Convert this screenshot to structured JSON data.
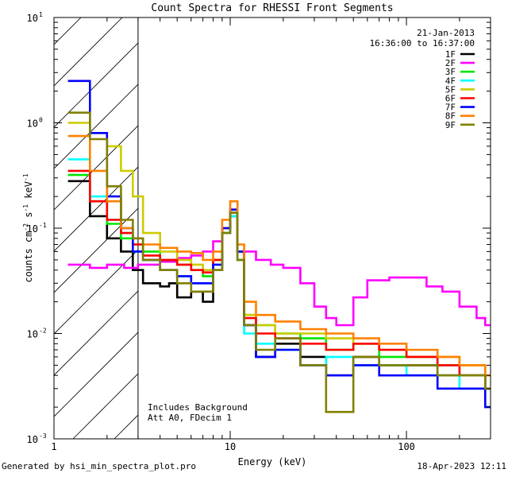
{
  "chart_data": {
    "type": "line",
    "title": "Count Spectra for RHESSI Front Segments",
    "xlabel": "Energy (keV)",
    "ylabel_parts": [
      "counts cm",
      "-2",
      " s",
      "-1",
      " keV",
      "-1"
    ],
    "xscale": "log",
    "yscale": "log",
    "xlim": [
      1,
      300
    ],
    "ylim": [
      0.001,
      10
    ],
    "x_ticks": [
      {
        "value": 1,
        "label": "1"
      },
      {
        "value": 10,
        "label": "10"
      },
      {
        "value": 100,
        "label": "100"
      }
    ],
    "y_ticks": [
      {
        "value": 0.001,
        "base": "10",
        "exp": "-3"
      },
      {
        "value": 0.01,
        "base": "10",
        "exp": "-2"
      },
      {
        "value": 0.1,
        "base": "10",
        "exp": "-1"
      },
      {
        "value": 1,
        "base": "10",
        "exp": "0"
      },
      {
        "value": 10,
        "base": "10",
        "exp": "1"
      }
    ],
    "date": "21-Jan-2013",
    "time_range": "16:36:00 to 16:37:00",
    "hatch_xlim": [
      1,
      3
    ],
    "annotations": [
      "Includes Background",
      "Att A0, FDecim 1"
    ],
    "series": [
      {
        "name": "1F",
        "color": "#000000",
        "values": [
          [
            1.2,
            0.28
          ],
          [
            1.6,
            0.13
          ],
          [
            2,
            0.08
          ],
          [
            2.4,
            0.06
          ],
          [
            2.8,
            0.04
          ],
          [
            3.2,
            0.03
          ],
          [
            4,
            0.028
          ],
          [
            4.5,
            0.03
          ],
          [
            5,
            0.022
          ],
          [
            6,
            0.025
          ],
          [
            7,
            0.02
          ],
          [
            8,
            0.04
          ],
          [
            9,
            0.09
          ],
          [
            10,
            0.13
          ],
          [
            11,
            0.05
          ],
          [
            12,
            0.012
          ],
          [
            14,
            0.006
          ],
          [
            18,
            0.008
          ],
          [
            25,
            0.006
          ],
          [
            35,
            0.004
          ],
          [
            50,
            0.006
          ],
          [
            70,
            0.005
          ],
          [
            100,
            0.005
          ],
          [
            150,
            0.004
          ],
          [
            200,
            0.004
          ],
          [
            280,
            0.003
          ]
        ]
      },
      {
        "name": "2F",
        "color": "#ff00ff",
        "values": [
          [
            1.2,
            0.045
          ],
          [
            1.6,
            0.042
          ],
          [
            2,
            0.045
          ],
          [
            2.5,
            0.042
          ],
          [
            3,
            0.045
          ],
          [
            4,
            0.048
          ],
          [
            5,
            0.052
          ],
          [
            6,
            0.055
          ],
          [
            7,
            0.06
          ],
          [
            8,
            0.075
          ],
          [
            9,
            0.1
          ],
          [
            10,
            0.15
          ],
          [
            11,
            0.06
          ],
          [
            14,
            0.05
          ],
          [
            17,
            0.045
          ],
          [
            20,
            0.042
          ],
          [
            25,
            0.03
          ],
          [
            30,
            0.018
          ],
          [
            35,
            0.014
          ],
          [
            40,
            0.012
          ],
          [
            50,
            0.022
          ],
          [
            60,
            0.032
          ],
          [
            80,
            0.034
          ],
          [
            100,
            0.034
          ],
          [
            130,
            0.028
          ],
          [
            160,
            0.025
          ],
          [
            200,
            0.018
          ],
          [
            250,
            0.014
          ],
          [
            280,
            0.012
          ]
        ]
      },
      {
        "name": "3F",
        "color": "#00e600",
        "values": [
          [
            1.2,
            0.32
          ],
          [
            1.6,
            0.18
          ],
          [
            2,
            0.11
          ],
          [
            2.4,
            0.08
          ],
          [
            2.8,
            0.07
          ],
          [
            3.2,
            0.06
          ],
          [
            4,
            0.05
          ],
          [
            5,
            0.045
          ],
          [
            6,
            0.04
          ],
          [
            7,
            0.035
          ],
          [
            8,
            0.05
          ],
          [
            9,
            0.1
          ],
          [
            10,
            0.14
          ],
          [
            11,
            0.06
          ],
          [
            12,
            0.015
          ],
          [
            14,
            0.012
          ],
          [
            18,
            0.01
          ],
          [
            25,
            0.009
          ],
          [
            35,
            0.007
          ],
          [
            50,
            0.008
          ],
          [
            70,
            0.006
          ],
          [
            100,
            0.006
          ],
          [
            150,
            0.005
          ],
          [
            200,
            0.004
          ],
          [
            280,
            0.003
          ]
        ]
      },
      {
        "name": "4F",
        "color": "#00ffff",
        "values": [
          [
            1.2,
            0.45
          ],
          [
            1.6,
            0.2
          ],
          [
            2,
            0.12
          ],
          [
            2.4,
            0.09
          ],
          [
            2.8,
            0.06
          ],
          [
            3.2,
            0.05
          ],
          [
            4,
            0.04
          ],
          [
            5,
            0.035
          ],
          [
            6,
            0.03
          ],
          [
            7,
            0.03
          ],
          [
            8,
            0.045
          ],
          [
            9,
            0.09
          ],
          [
            10,
            0.13
          ],
          [
            11,
            0.05
          ],
          [
            12,
            0.01
          ],
          [
            14,
            0.008
          ],
          [
            18,
            0.007
          ],
          [
            25,
            0.005
          ],
          [
            35,
            0.006
          ],
          [
            50,
            0.005
          ],
          [
            70,
            0.005
          ],
          [
            100,
            0.004
          ],
          [
            150,
            0.004
          ],
          [
            200,
            0.003
          ],
          [
            280,
            0.003
          ]
        ]
      },
      {
        "name": "5F",
        "color": "#cccc00",
        "values": [
          [
            1.2,
            1.0
          ],
          [
            1.6,
            0.8
          ],
          [
            2,
            0.6
          ],
          [
            2.4,
            0.35
          ],
          [
            2.8,
            0.2
          ],
          [
            3.2,
            0.09
          ],
          [
            4,
            0.06
          ],
          [
            5,
            0.05
          ],
          [
            6,
            0.045
          ],
          [
            7,
            0.04
          ],
          [
            8,
            0.05
          ],
          [
            9,
            0.1
          ],
          [
            10,
            0.15
          ],
          [
            11,
            0.06
          ],
          [
            12,
            0.015
          ],
          [
            14,
            0.012
          ],
          [
            18,
            0.01
          ],
          [
            25,
            0.01
          ],
          [
            35,
            0.009
          ],
          [
            50,
            0.008
          ],
          [
            70,
            0.007
          ],
          [
            100,
            0.006
          ],
          [
            150,
            0.006
          ],
          [
            200,
            0.005
          ],
          [
            280,
            0.004
          ]
        ]
      },
      {
        "name": "6F",
        "color": "#ff0000",
        "values": [
          [
            1.2,
            0.35
          ],
          [
            1.6,
            0.18
          ],
          [
            2,
            0.12
          ],
          [
            2.4,
            0.09
          ],
          [
            2.8,
            0.07
          ],
          [
            3.2,
            0.055
          ],
          [
            4,
            0.05
          ],
          [
            5,
            0.045
          ],
          [
            6,
            0.04
          ],
          [
            7,
            0.038
          ],
          [
            8,
            0.05
          ],
          [
            9,
            0.1
          ],
          [
            10,
            0.14
          ],
          [
            11,
            0.06
          ],
          [
            12,
            0.014
          ],
          [
            14,
            0.01
          ],
          [
            18,
            0.009
          ],
          [
            25,
            0.008
          ],
          [
            35,
            0.007
          ],
          [
            50,
            0.008
          ],
          [
            70,
            0.007
          ],
          [
            100,
            0.006
          ],
          [
            150,
            0.005
          ],
          [
            200,
            0.004
          ],
          [
            280,
            0.003
          ]
        ]
      },
      {
        "name": "7F",
        "color": "#0000ff",
        "values": [
          [
            1.2,
            2.5
          ],
          [
            1.6,
            0.8
          ],
          [
            2,
            0.2
          ],
          [
            2.4,
            0.1
          ],
          [
            2.8,
            0.06
          ],
          [
            3.2,
            0.05
          ],
          [
            4,
            0.04
          ],
          [
            5,
            0.035
          ],
          [
            6,
            0.03
          ],
          [
            7,
            0.03
          ],
          [
            8,
            0.045
          ],
          [
            9,
            0.1
          ],
          [
            10,
            0.15
          ],
          [
            11,
            0.06
          ],
          [
            12,
            0.012
          ],
          [
            14,
            0.006
          ],
          [
            18,
            0.007
          ],
          [
            25,
            0.005
          ],
          [
            35,
            0.004
          ],
          [
            50,
            0.005
          ],
          [
            70,
            0.004
          ],
          [
            100,
            0.004
          ],
          [
            150,
            0.003
          ],
          [
            200,
            0.003
          ],
          [
            280,
            0.002
          ]
        ]
      },
      {
        "name": "8F",
        "color": "#ff8000",
        "values": [
          [
            1.2,
            0.75
          ],
          [
            1.6,
            0.35
          ],
          [
            2,
            0.18
          ],
          [
            2.4,
            0.1
          ],
          [
            2.8,
            0.08
          ],
          [
            3.2,
            0.07
          ],
          [
            4,
            0.065
          ],
          [
            5,
            0.06
          ],
          [
            6,
            0.058
          ],
          [
            7,
            0.05
          ],
          [
            8,
            0.06
          ],
          [
            9,
            0.12
          ],
          [
            10,
            0.18
          ],
          [
            11,
            0.07
          ],
          [
            12,
            0.02
          ],
          [
            14,
            0.015
          ],
          [
            18,
            0.013
          ],
          [
            25,
            0.011
          ],
          [
            35,
            0.01
          ],
          [
            50,
            0.009
          ],
          [
            70,
            0.008
          ],
          [
            100,
            0.007
          ],
          [
            150,
            0.006
          ],
          [
            200,
            0.005
          ],
          [
            280,
            0.004
          ]
        ]
      },
      {
        "name": "9F",
        "color": "#808000",
        "values": [
          [
            1.2,
            1.25
          ],
          [
            1.6,
            0.7
          ],
          [
            2,
            0.25
          ],
          [
            2.4,
            0.12
          ],
          [
            2.8,
            0.08
          ],
          [
            3.2,
            0.05
          ],
          [
            4,
            0.04
          ],
          [
            5,
            0.03
          ],
          [
            6,
            0.025
          ],
          [
            7,
            0.025
          ],
          [
            8,
            0.04
          ],
          [
            9,
            0.09
          ],
          [
            10,
            0.14
          ],
          [
            11,
            0.05
          ],
          [
            12,
            0.012
          ],
          [
            14,
            0.007
          ],
          [
            18,
            0.009
          ],
          [
            25,
            0.005
          ],
          [
            35,
            0.0018
          ],
          [
            50,
            0.006
          ],
          [
            70,
            0.005
          ],
          [
            100,
            0.005
          ],
          [
            150,
            0.004
          ],
          [
            200,
            0.004
          ],
          [
            280,
            0.003
          ]
        ]
      }
    ]
  },
  "footer": {
    "generated_by": "Generated by hsi_min_spectra_plot.pro",
    "timestamp": "18-Apr-2023 12:11"
  }
}
